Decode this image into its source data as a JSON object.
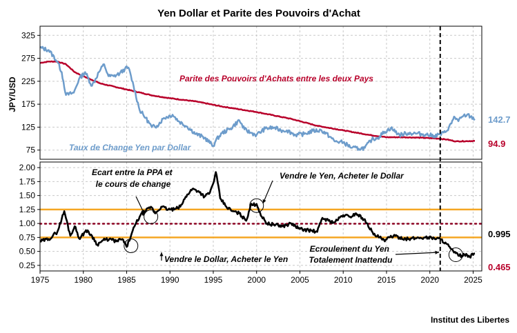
{
  "chart_data": [
    {
      "type": "line",
      "title": "Yen Dollar et Parite des Pouvoirs d'Achat",
      "ylabel": "JPY/USD",
      "ylim": [
        55,
        345
      ],
      "yticks": [
        "325",
        "275",
        "225",
        "175",
        "125",
        "75"
      ],
      "ytick_values": [
        325,
        275,
        225,
        175,
        125,
        75
      ],
      "grid": true,
      "series": [
        {
          "name": "Taux de Change Yen par Dollar",
          "color": "#6d9ccb",
          "end_label": "142.7",
          "x": [
            1975.0,
            1976.0,
            1977.0,
            1977.5,
            1978.0,
            1978.9,
            1979.5,
            1980.2,
            1981.0,
            1981.8,
            1982.4,
            1982.9,
            1983.5,
            1984.2,
            1984.8,
            1985.2,
            1985.8,
            1986.5,
            1987.2,
            1987.9,
            1988.5,
            1989.3,
            1990.3,
            1991.0,
            1992.0,
            1993.0,
            1994.0,
            1995.0,
            1995.3,
            1996.0,
            1997.0,
            1998.0,
            1998.6,
            1999.3,
            2000.0,
            2001.0,
            2002.0,
            2002.8,
            2003.5,
            2004.5,
            2005.5,
            2006.5,
            2007.5,
            2008.5,
            2009.0,
            2010.0,
            2011.0,
            2011.8,
            2012.5,
            2013.3,
            2014.0,
            2014.8,
            2015.5,
            2016.5,
            2017.5,
            2018.5,
            2019.5,
            2020.5,
            2021.2,
            2021.8,
            2022.5,
            2022.8,
            2023.3,
            2023.8,
            2024.3,
            2024.7,
            2025.2
          ],
          "y": [
            298,
            293,
            268,
            245,
            195,
            200,
            230,
            245,
            215,
            245,
            262,
            236,
            236,
            242,
            252,
            255,
            215,
            162,
            145,
            125,
            128,
            145,
            152,
            138,
            126,
            110,
            102,
            84,
            96,
            112,
            122,
            140,
            120,
            113,
            108,
            122,
            124,
            118,
            118,
            108,
            110,
            117,
            118,
            104,
            94,
            92,
            80,
            78,
            80,
            98,
            102,
            115,
            123,
            108,
            112,
            111,
            109,
            106,
            109,
            114,
            133,
            148,
            138,
            148,
            152,
            148,
            142.7
          ]
        },
        {
          "name": "Parite des Pouvoirs d'Achats entre les deux Pays",
          "color": "#b8002a",
          "end_label": "94.9",
          "x": [
            1975.0,
            1976.0,
            1977.0,
            1978.0,
            1979.0,
            1980.0,
            1982.0,
            1985.0,
            1988.0,
            1990.0,
            1993.0,
            1996.0,
            2000.0,
            2004.0,
            2007.0,
            2010.0,
            2013.0,
            2015.0,
            2017.0,
            2019.0,
            2021.0,
            2022.0,
            2023.0,
            2025.2
          ],
          "y": [
            265,
            268,
            268,
            262,
            245,
            236,
            220,
            207,
            194,
            188,
            181,
            170,
            158,
            143,
            128,
            118,
            108,
            103,
            103,
            102,
            100,
            98,
            94,
            94.9
          ]
        }
      ],
      "annotations": [
        "Parite des Pouvoirs d'Achats entre les deux Pays",
        "Taux de Change Yen par Dollar"
      ]
    },
    {
      "type": "line",
      "xlim": [
        1975,
        2026
      ],
      "ylim": [
        0.15,
        2.1
      ],
      "xticks": [
        "1975",
        "1980",
        "1985",
        "1990",
        "1995",
        "2000",
        "2005",
        "2010",
        "2015",
        "2020",
        "2025"
      ],
      "xtick_values": [
        1975,
        1980,
        1985,
        1990,
        1995,
        2000,
        2005,
        2010,
        2015,
        2020,
        2025
      ],
      "yticks": [
        "2.00",
        "1.75",
        "1.50",
        "1.25",
        "1.00",
        "0.75",
        "0.50",
        "0.25"
      ],
      "ytick_values": [
        2.0,
        1.75,
        1.5,
        1.25,
        1.0,
        0.75,
        0.5,
        0.25
      ],
      "grid": true,
      "series": [
        {
          "name": "Ratio",
          "color": "#000000",
          "end_label": "0.465",
          "x": [
            1975.0,
            1976.0,
            1977.0,
            1977.8,
            1978.5,
            1979.0,
            1979.6,
            1980.3,
            1981.0,
            1981.6,
            1982.3,
            1983.0,
            1983.8,
            1984.5,
            1985.0,
            1985.5,
            1986.0,
            1986.6,
            1987.2,
            1987.8,
            1988.3,
            1989.0,
            1989.8,
            1990.5,
            1991.2,
            1992.0,
            1992.6,
            1993.3,
            1994.0,
            1994.6,
            1995.0,
            1995.3,
            1995.8,
            1996.5,
            1997.2,
            1998.0,
            1998.8,
            1999.3,
            2000.0,
            2000.6,
            2001.2,
            2002.0,
            2003.0,
            2004.0,
            2005.0,
            2006.0,
            2007.0,
            2007.6,
            2008.3,
            2009.0,
            2010.0,
            2010.8,
            2011.5,
            2012.2,
            2012.8,
            2013.5,
            2014.2,
            2014.8,
            2015.5,
            2016.5,
            2017.5,
            2018.5,
            2019.5,
            2020.5,
            2021.2,
            2021.8,
            2022.4,
            2022.8,
            2023.4,
            2024.0,
            2024.6,
            2025.2
          ],
          "y": [
            0.68,
            0.72,
            0.85,
            1.22,
            0.78,
            0.95,
            0.72,
            0.88,
            0.78,
            0.62,
            0.7,
            0.72,
            0.68,
            0.72,
            0.58,
            0.78,
            0.98,
            1.15,
            1.22,
            1.3,
            1.18,
            1.3,
            1.25,
            1.25,
            1.3,
            1.52,
            1.62,
            1.58,
            1.48,
            1.55,
            1.72,
            1.92,
            1.45,
            1.3,
            1.22,
            1.18,
            1.05,
            1.32,
            1.35,
            1.12,
            1.0,
            0.98,
            0.95,
            1.0,
            0.9,
            0.88,
            0.85,
            1.1,
            1.05,
            1.02,
            1.15,
            1.12,
            1.18,
            1.1,
            1.0,
            0.8,
            0.75,
            0.68,
            0.78,
            0.75,
            0.72,
            0.74,
            0.75,
            0.74,
            0.72,
            0.66,
            0.55,
            0.48,
            0.42,
            0.44,
            0.4,
            0.465
          ]
        }
      ],
      "reference_lines": [
        {
          "value": 1.25,
          "style": "solid",
          "color": "#f5a623"
        },
        {
          "value": 0.75,
          "style": "solid",
          "color": "#f5a623"
        },
        {
          "value": 0.995,
          "style": "dotted",
          "color": "#8b0020",
          "label": "0.995"
        }
      ],
      "vertical_marker": {
        "x": 2021.2,
        "style": "dashed",
        "color": "#000000"
      },
      "annotations": [
        {
          "text_lines": [
            "Ecart entre la PPA et",
            "le cours de change"
          ]
        },
        {
          "text_lines": [
            "Vendre le Yen, Acheter le Dollar"
          ]
        },
        {
          "text_lines": [
            "Vendre le Dollar, Acheter le Yen"
          ]
        },
        {
          "text_lines": [
            "Ecroulement du Yen",
            "Totalement Inattendu"
          ]
        }
      ],
      "circles": [
        {
          "x": 1985.5,
          "y": 0.6
        },
        {
          "x": 1987.8,
          "y": 1.12
        },
        {
          "x": 2000.0,
          "y": 1.32
        },
        {
          "x": 2023.0,
          "y": 0.44
        }
      ]
    }
  ],
  "source": "Institut des Libertes"
}
